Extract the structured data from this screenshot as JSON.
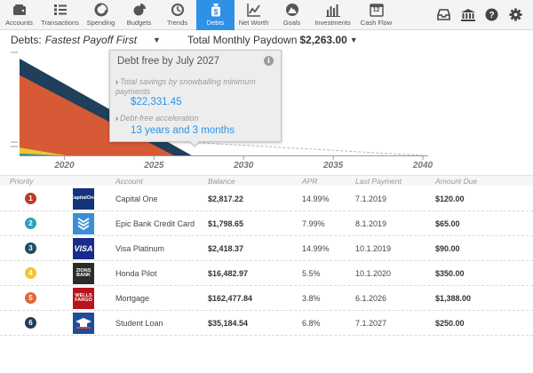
{
  "nav": {
    "items": [
      {
        "label": "Accounts",
        "icon": "wallet-icon"
      },
      {
        "label": "Transactions",
        "icon": "list-icon"
      },
      {
        "label": "Spending",
        "icon": "pie-chart-icon"
      },
      {
        "label": "Budgets",
        "icon": "budget-icon"
      },
      {
        "label": "Trends",
        "icon": "clock-icon"
      },
      {
        "label": "Debts",
        "icon": "dollar-bag-icon",
        "active": true
      },
      {
        "label": "Net Worth",
        "icon": "line-chart-icon"
      },
      {
        "label": "Goals",
        "icon": "mountain-icon"
      },
      {
        "label": "Investments",
        "icon": "bar-chart-icon"
      },
      {
        "label": "Cash Flow",
        "icon": "calendar-icon",
        "calendar_day": "12"
      }
    ],
    "right_icons": [
      "inbox-icon",
      "bank-icon",
      "help-icon",
      "settings-icon"
    ],
    "active_color": "#2e91e6"
  },
  "header": {
    "debts_label": "Debts:",
    "strategy": "Fastest Payoff First",
    "paydown_label": "Total Monthly Paydown",
    "paydown_value": "$2,263.00"
  },
  "chart_data": {
    "type": "area",
    "x_ticks": [
      "2020",
      "2025",
      "2030",
      "2035",
      "2040"
    ],
    "x_range": [
      2017.5,
      2040
    ],
    "ylim": [
      0,
      1
    ],
    "series": [
      {
        "color": "#1f3f5b",
        "x": [
          2017.5,
          2027.1
        ],
        "y": [
          1.0,
          0
        ]
      },
      {
        "color": "#d65a36",
        "x": [
          2017.5,
          2026.1
        ],
        "y": [
          0.83,
          0
        ]
      },
      {
        "color": "#f4c430",
        "x": [
          2017.5,
          2020.1
        ],
        "y": [
          0.08,
          0
        ]
      },
      {
        "color": "#2b8fa0",
        "x": [
          2017.5,
          2019.8
        ],
        "y": [
          0.02,
          0
        ]
      }
    ]
  },
  "tooltip": {
    "title": "Debt free by July 2027",
    "savings_label": "Total savings by snowballing minimum payments",
    "savings_value": "$22,331.45",
    "accel_label": "Debt-free acceleration",
    "accel_value": "13 years and 3 months"
  },
  "table": {
    "headers": [
      "Priority",
      "Account",
      "Balance",
      "APR",
      "Last Payment",
      "Amount Due"
    ],
    "rows": [
      {
        "priority": "1",
        "color": "#c0392b",
        "logo": "capital-one-logo",
        "logo_text": "CapitalOne",
        "logo_bg": "#13337a",
        "account": "Capital One",
        "balance": "$2,817.22",
        "apr": "14.99%",
        "last_payment": "7.1.2019",
        "amount_due": "$120.00"
      },
      {
        "priority": "2",
        "color": "#2aa3b5",
        "logo": "epic-bank-logo",
        "logo_text": "",
        "logo_bg": "#3a8fd8",
        "account": "Epic Bank Credit Card",
        "balance": "$1,798.65",
        "apr": "7.99%",
        "last_payment": "8.1.2019",
        "amount_due": "$65.00"
      },
      {
        "priority": "3",
        "color": "#1f4f5f",
        "logo": "visa-logo",
        "logo_text": "VISA",
        "logo_bg": "#1a2b8c",
        "account": "Visa Platinum",
        "balance": "$2,418.37",
        "apr": "14.99%",
        "last_payment": "10.1.2019",
        "amount_due": "$90.00"
      },
      {
        "priority": "4",
        "color": "#f4c430",
        "logo": "zions-bank-logo",
        "logo_text": "ZIONS BANK",
        "logo_bg": "#2b2b2b",
        "account": "Honda Pilot",
        "balance": "$16,482.97",
        "apr": "5.5%",
        "last_payment": "10.1.2020",
        "amount_due": "$350.00"
      },
      {
        "priority": "5",
        "color": "#e0663a",
        "logo": "wells-fargo-logo",
        "logo_text": "WELLS FARGO",
        "logo_bg": "#b8141b",
        "account": "Mortgage",
        "balance": "$162,477.84",
        "apr": "3.8%",
        "last_payment": "6.1.2026",
        "amount_due": "$1,388.00"
      },
      {
        "priority": "6",
        "color": "#1f3f5b",
        "logo": "student-loan-logo",
        "logo_text": "",
        "logo_bg": "#1c4e9c",
        "account": "Student Loan",
        "balance": "$35,184.54",
        "apr": "6.8%",
        "last_payment": "7.1.2027",
        "amount_due": "$250.00"
      }
    ]
  }
}
